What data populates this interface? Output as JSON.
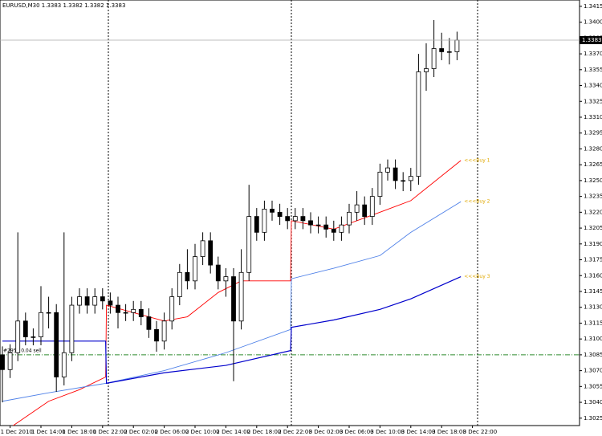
{
  "chart_data": {
    "type": "candlestick",
    "title": "EURUSD,M30  1.3383 1.3382 1.3382 1.3383",
    "categories": [
      null,
      "1 Dec 2010",
      null,
      null,
      null,
      "1 Dec 14:00",
      null,
      null,
      null,
      "1 Dec 18:00",
      null,
      null,
      null,
      "1 Dec 22:00",
      null,
      null,
      null,
      "2 Dec 02:00",
      null,
      null,
      null,
      "2 Dec 06:00",
      null,
      null,
      null,
      "2 Dec 10:00",
      null,
      null,
      null,
      "2 Dec 14:00",
      null,
      null,
      null,
      "2 Dec 18:00",
      null,
      null,
      null,
      "2 Dec 22:00",
      null,
      null,
      null,
      "3 Dec 02:00",
      null,
      null,
      null,
      "3 Dec 06:00",
      null,
      null,
      null,
      "3 Dec 10:00",
      null,
      null,
      null,
      "3 Dec 14:00",
      null,
      null,
      null,
      "3 Dec 18:00",
      null,
      null,
      null,
      "3 Dec 22:00"
    ],
    "open": [
      1.3085,
      1.3071,
      1.3087,
      1.3117,
      1.3102,
      1.3102,
      1.3125,
      1.3125,
      1.3064,
      1.3087,
      1.3132,
      1.314,
      1.3132,
      1.314,
      1.3136,
      1.3132,
      1.3125,
      1.3125,
      1.3128,
      1.3121,
      1.3109,
      1.3098,
      1.3117,
      1.314,
      1.3163,
      1.3155,
      1.3178,
      1.3193,
      1.317,
      1.3155,
      1.3159,
      1.3117,
      1.3163,
      1.3216,
      1.3201,
      1.3223,
      1.322,
      1.3216,
      1.3212,
      1.3216,
      1.3212,
      1.3208,
      1.3208,
      1.3204,
      1.3201,
      1.3208,
      1.322,
      1.3227,
      1.3216,
      1.3235,
      1.3258,
      1.3262,
      1.325,
      1.325,
      1.3254,
      1.3353,
      1.3356,
      1.3375,
      1.3372,
      1.3372,
      null,
      null
    ],
    "high": [
      1.3093,
      1.3095,
      1.3201,
      1.3125,
      1.311,
      1.315,
      1.314,
      1.3133,
      1.3201,
      1.314,
      1.3148,
      1.3148,
      1.3148,
      1.3148,
      1.3144,
      1.314,
      1.3133,
      1.3136,
      1.3136,
      1.3129,
      1.3117,
      1.3125,
      1.3148,
      1.3171,
      1.3185,
      1.319,
      1.3201,
      1.3201,
      1.3178,
      1.3167,
      1.3167,
      1.3185,
      1.3246,
      1.3224,
      1.3231,
      1.3231,
      1.3228,
      1.3224,
      1.3224,
      1.3224,
      1.322,
      1.3216,
      1.3216,
      1.3212,
      1.3216,
      1.3228,
      1.324,
      1.3235,
      1.3243,
      1.3266,
      1.327,
      1.327,
      1.3258,
      1.3262,
      1.337,
      1.338,
      1.3402,
      1.339,
      1.3385,
      1.3391,
      null,
      null
    ],
    "low": [
      1.304,
      1.3063,
      1.3079,
      1.3094,
      1.3094,
      1.3094,
      1.311,
      1.305,
      1.3056,
      1.3079,
      1.3124,
      1.3124,
      1.3124,
      1.3128,
      1.3124,
      1.311,
      1.3117,
      1.3117,
      1.3113,
      1.3101,
      1.3088,
      1.309,
      1.3109,
      1.3132,
      1.3147,
      1.3147,
      1.317,
      1.3162,
      1.3147,
      1.314,
      1.306,
      1.3109,
      1.3155,
      1.3193,
      1.3193,
      1.3212,
      1.3208,
      1.3204,
      1.3204,
      1.3204,
      1.32,
      1.32,
      1.3196,
      1.3193,
      1.3193,
      1.32,
      1.3212,
      1.3208,
      1.3208,
      1.3227,
      1.325,
      1.3242,
      1.324,
      1.324,
      1.3246,
      1.3335,
      1.3348,
      1.3364,
      1.336,
      1.3364,
      null,
      null
    ],
    "close": [
      1.3071,
      1.3087,
      1.3117,
      1.3102,
      1.3102,
      1.3125,
      1.3125,
      1.3064,
      1.3087,
      1.3132,
      1.314,
      1.3132,
      1.314,
      1.3136,
      1.3132,
      1.3125,
      1.3125,
      1.3128,
      1.3121,
      1.3109,
      1.3098,
      1.3117,
      1.314,
      1.3163,
      1.3155,
      1.3178,
      1.3193,
      1.317,
      1.3155,
      1.3159,
      1.3117,
      1.3163,
      1.3216,
      1.3201,
      1.3223,
      1.322,
      1.3216,
      1.3212,
      1.3216,
      1.3212,
      1.3208,
      1.3208,
      1.3204,
      1.3201,
      1.3208,
      1.322,
      1.3227,
      1.3216,
      1.3235,
      1.3258,
      1.3262,
      1.325,
      1.325,
      1.3254,
      1.3353,
      1.3356,
      1.3375,
      1.3372,
      1.3372,
      1.3383,
      null,
      null
    ],
    "lines": [
      {
        "label": "<<<Buy 1",
        "color": "#ff0000",
        "x": [
          0,
          6,
          10,
          13.4,
          13.5,
          17,
          21,
          24,
          28,
          31,
          37.4,
          37.5,
          43,
          49,
          53,
          59.5
        ],
        "values": [
          1.3011,
          1.3041,
          1.3052,
          1.3064,
          1.3132,
          1.3125,
          1.3117,
          1.3121,
          1.3144,
          1.3155,
          1.3155,
          1.3212,
          1.3204,
          1.322,
          1.3231,
          1.3269
        ]
      },
      {
        "label": "<<<Buy 2",
        "color": "#4f81e8",
        "x": [
          0,
          6,
          13.4,
          21,
          29,
          37.4,
          37.5,
          43,
          49,
          53,
          59.5
        ],
        "values": [
          1.3041,
          1.3049,
          1.3058,
          1.307,
          1.3087,
          1.3109,
          1.3157,
          1.3167,
          1.3179,
          1.3201,
          1.323
        ]
      },
      {
        "label": "<<<Buy 3",
        "color": "#0000cc",
        "x": [
          0,
          13.4,
          13.5,
          21,
          29,
          37.4,
          37.5,
          43,
          49,
          53,
          59.5
        ],
        "values": [
          1.3098,
          1.3098,
          1.3058,
          1.3068,
          1.3075,
          1.3089,
          1.3111,
          1.3118,
          1.3128,
          1.3138,
          1.3159
        ]
      }
    ],
    "order": {
      "label": "#2953 0.04 sell",
      "price": 1.3085,
      "color": "#2e8b2e"
    },
    "ylim": [
      1.3018,
      1.3421
    ],
    "yticks": [
      1.3415,
      {
        "value": 1.34,
        "label": "1.3400"
      },
      1.3385,
      {
        "value": 1.337,
        "label": "1.3370"
      },
      1.3355,
      {
        "value": 1.334,
        "label": "1.3340"
      },
      1.3325,
      {
        "value": 1.331,
        "label": "1.3310"
      },
      1.3295,
      {
        "value": 1.328,
        "label": "1.3280"
      },
      1.3265,
      {
        "value": 1.325,
        "label": "1.3250"
      },
      1.3235,
      {
        "value": 1.322,
        "label": "1.3220"
      },
      1.3205,
      {
        "value": 1.319,
        "label": "1.3190"
      },
      1.3175,
      {
        "value": 1.316,
        "label": "1.3160"
      },
      1.3145,
      {
        "value": 1.313,
        "label": "1.3130"
      },
      1.3115,
      {
        "value": 1.31,
        "label": "1.3100"
      },
      1.3085,
      {
        "value": 1.307,
        "label": "1.3070"
      },
      1.3055,
      {
        "value": 1.304,
        "label": "1.3040"
      },
      1.3025
    ]
  }
}
